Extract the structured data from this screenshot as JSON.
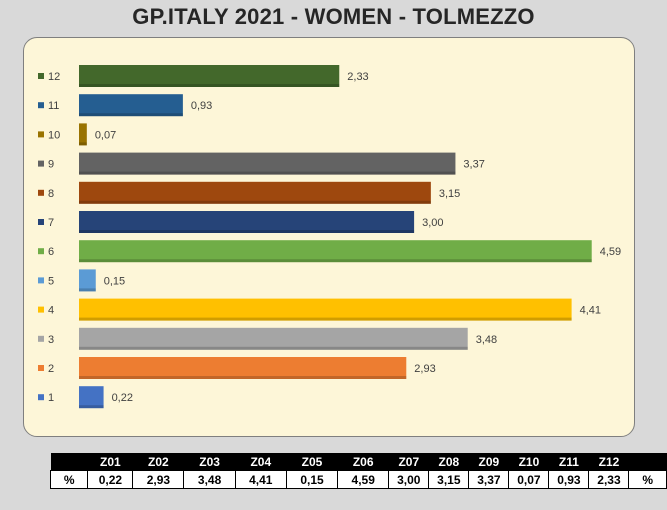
{
  "title": "GP.ITALY 2021 - WOMEN - TOLMEZZO",
  "chart_data": {
    "type": "bar",
    "orientation": "horizontal",
    "categories": [
      "1",
      "2",
      "3",
      "4",
      "5",
      "6",
      "7",
      "8",
      "9",
      "10",
      "11",
      "12"
    ],
    "values": [
      0.22,
      2.93,
      3.48,
      4.41,
      0.15,
      4.59,
      3.0,
      3.15,
      3.37,
      0.07,
      0.93,
      2.33
    ],
    "value_labels": [
      "0,22",
      "2,93",
      "3,48",
      "4,41",
      "0,15",
      "4,59",
      "3,00",
      "3,15",
      "3,37",
      "0,07",
      "0,93",
      "2,33"
    ],
    "colors": [
      "#4472c4",
      "#ed7d31",
      "#a5a5a5",
      "#ffc000",
      "#5b9bd5",
      "#70ad47",
      "#264478",
      "#9e480e",
      "#636363",
      "#997300",
      "#255e91",
      "#43682b"
    ],
    "xlim": [
      0,
      4.7
    ],
    "legend": "left",
    "grid": false
  },
  "table": {
    "headers": [
      "",
      "Z01",
      "Z02",
      "Z03",
      "Z04",
      "Z05",
      "Z06",
      "Z07",
      "Z08",
      "Z09",
      "Z10",
      "Z11",
      "Z12",
      ""
    ],
    "row_label": "%",
    "row_label_end": "%",
    "values": [
      "0,22",
      "2,93",
      "3,48",
      "4,41",
      "0,15",
      "4,59",
      "3,00",
      "3,15",
      "3,37",
      "0,07",
      "0,93",
      "2,33"
    ]
  }
}
